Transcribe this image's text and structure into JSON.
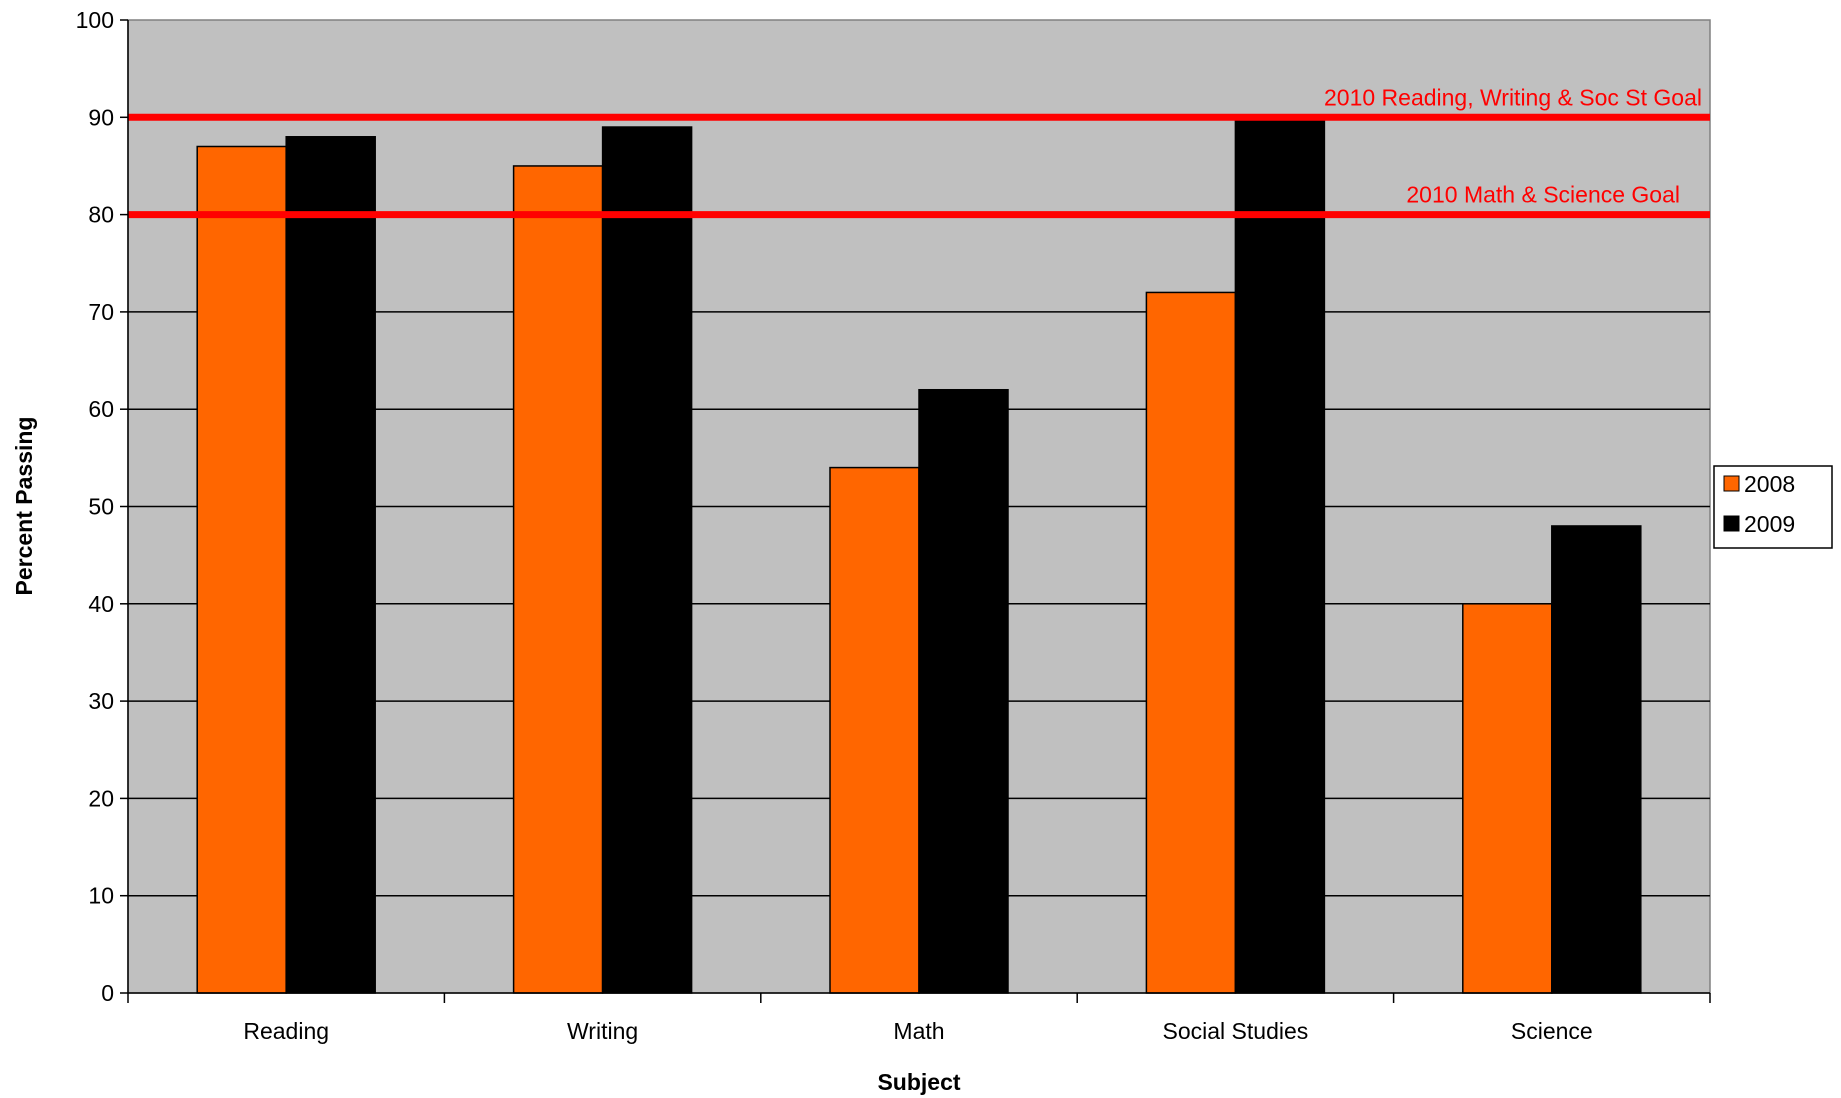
{
  "chart_data": {
    "type": "bar",
    "title": "",
    "xlabel": "Subject",
    "ylabel": "Percent Passing",
    "ylim": [
      0,
      100
    ],
    "y_ticks": [
      "0",
      "10",
      "20",
      "30",
      "40",
      "50",
      "60",
      "70",
      "80",
      "90",
      "100"
    ],
    "categories": [
      "Reading",
      "Writing",
      "Math",
      "Social Studies",
      "Science"
    ],
    "series": [
      {
        "name": "2008",
        "color": "#ff6600",
        "values": [
          87,
          85,
          54,
          72,
          40
        ]
      },
      {
        "name": "2009",
        "color": "#000000",
        "values": [
          88,
          89,
          62,
          90,
          48
        ]
      }
    ],
    "reference_lines": [
      {
        "label": "2010 Reading, Writing & Soc St Goal",
        "value": 90,
        "color": "#ff0000"
      },
      {
        "label": "2010  Math & Science Goal",
        "value": 80,
        "color": "#ff0000"
      }
    ],
    "grid": true,
    "legend_position": "right",
    "plot_background": "#c0c0c0"
  }
}
